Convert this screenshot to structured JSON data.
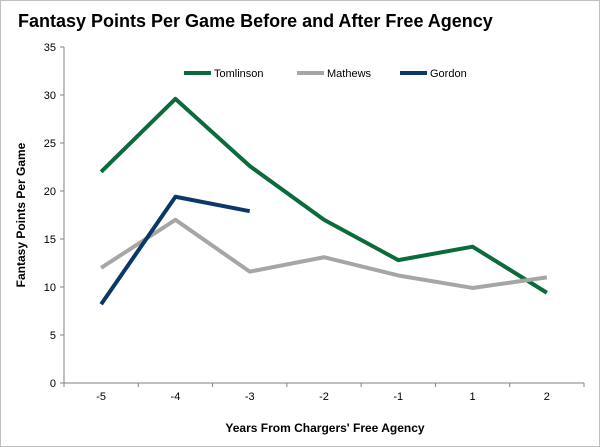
{
  "chart_data": {
    "type": "line",
    "title": "Fantasy Points Per Game Before and After Free Agency",
    "xlabel": "Years From Chargers' Free Agency",
    "ylabel": "Fantasy Points Per Game",
    "categories": [
      "-5",
      "-4",
      "-3",
      "-2",
      "-1",
      "1",
      "2"
    ],
    "ylim": [
      0,
      35
    ],
    "yticks": [
      0,
      5,
      10,
      15,
      20,
      25,
      30,
      35
    ],
    "grid": false,
    "legend_position": "top",
    "series": [
      {
        "name": "Tomlinson",
        "color": "#0b6b3a",
        "values": [
          22.0,
          29.6,
          22.6,
          17.0,
          12.8,
          14.2,
          9.4
        ]
      },
      {
        "name": "Mathews",
        "color": "#a6a6a6",
        "values": [
          12.0,
          17.0,
          11.6,
          13.1,
          11.2,
          9.9,
          11.0
        ]
      },
      {
        "name": "Gordon",
        "color": "#0d3766",
        "values": [
          8.2,
          19.4,
          17.9,
          null,
          null,
          null,
          null
        ]
      }
    ]
  }
}
